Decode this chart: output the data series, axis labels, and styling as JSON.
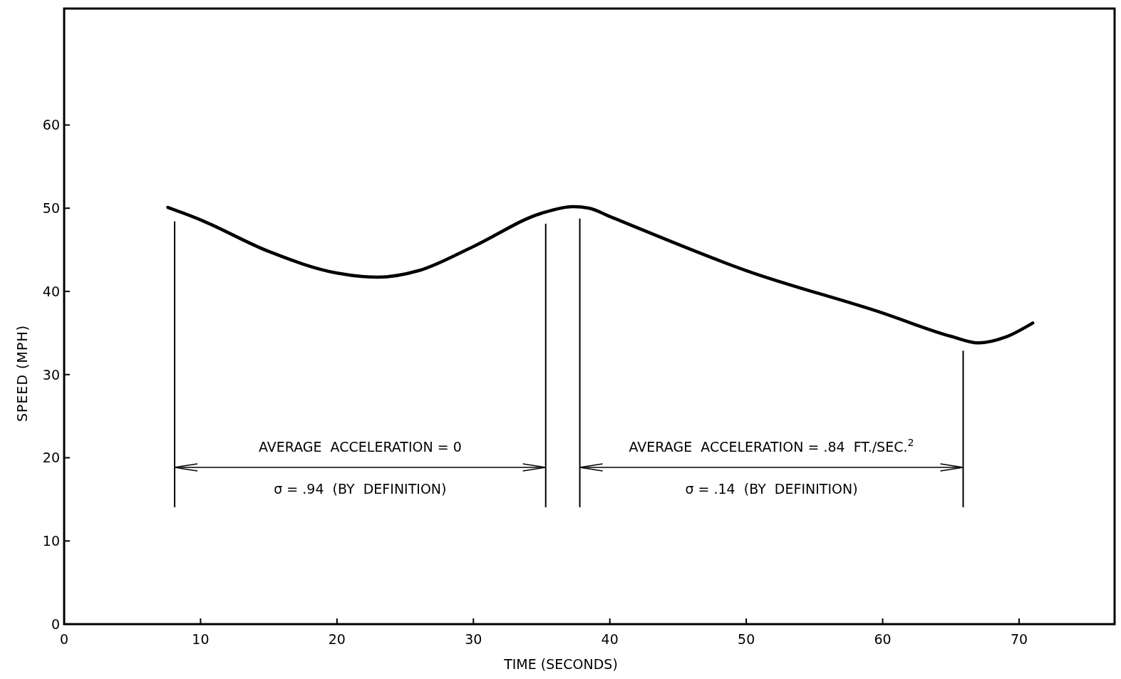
{
  "chart_data": {
    "type": "line",
    "xlabel": "TIME (SECONDS)",
    "ylabel": "SPEED (MPH)",
    "x": [
      7.6,
      10,
      15,
      20,
      23,
      26,
      30,
      35,
      37.3,
      38.5,
      40,
      50,
      60,
      65,
      67,
      69,
      71
    ],
    "series": [
      {
        "color": "#000000",
        "values": [
          50.1,
          48.6,
          44.8,
          42.2,
          41.7,
          42.5,
          45.4,
          49.4,
          50.2,
          50,
          49,
          42.5,
          37.4,
          34.6,
          33.8,
          34.5,
          36.2
        ]
      }
    ],
    "xlim": [
      0,
      77
    ],
    "ylim": [
      0,
      74
    ],
    "xticks": [
      0,
      10,
      20,
      30,
      40,
      50,
      60,
      70
    ],
    "yticks": [
      0,
      10,
      20,
      30,
      40,
      50,
      60
    ],
    "grid": false,
    "marker": "none",
    "line_style": "solid",
    "ref_lines": [
      {
        "axis": "x",
        "value": 8.1
      },
      {
        "axis": "x",
        "value": 35.3
      },
      {
        "axis": "x",
        "value": 37.8
      },
      {
        "axis": "x",
        "value": 65.9
      }
    ],
    "annotations": [
      "AVERAGE  ACCELERATION = 0",
      "σ = .94  (BY  DEFINITION)",
      "AVERAGE  ACCELERATION = .84  FT./SEC.$^{2}$",
      "σ = .14  (BY  DEFINITION)"
    ]
  }
}
